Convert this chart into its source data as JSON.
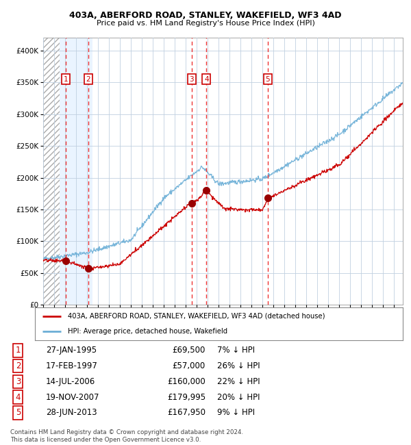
{
  "title1": "403A, ABERFORD ROAD, STANLEY, WAKEFIELD, WF3 4AD",
  "title2": "Price paid vs. HM Land Registry's House Price Index (HPI)",
  "legend_label1": "403A, ABERFORD ROAD, STANLEY, WAKEFIELD, WF3 4AD (detached house)",
  "legend_label2": "HPI: Average price, detached house, Wakefield",
  "table_entries": [
    {
      "num": 1,
      "date": "27-JAN-1995",
      "price": "£69,500",
      "pct": "7%",
      "arrow": "↓",
      "hpi": "HPI"
    },
    {
      "num": 2,
      "date": "17-FEB-1997",
      "price": "£57,000",
      "pct": "26%",
      "arrow": "↓",
      "hpi": "HPI"
    },
    {
      "num": 3,
      "date": "14-JUL-2006",
      "price": "£160,000",
      "pct": "22%",
      "arrow": "↓",
      "hpi": "HPI"
    },
    {
      "num": 4,
      "date": "19-NOV-2007",
      "price": "£179,995",
      "pct": "20%",
      "arrow": "↓",
      "hpi": "HPI"
    },
    {
      "num": 5,
      "date": "28-JUN-2013",
      "price": "£167,950",
      "pct": "9%",
      "arrow": "↓",
      "hpi": "HPI"
    }
  ],
  "sale_dates_decimal": [
    1995.07,
    1997.12,
    2006.54,
    2007.89,
    2013.49
  ],
  "sale_prices": [
    69500,
    57000,
    160000,
    179995,
    167950
  ],
  "footer": "Contains HM Land Registry data © Crown copyright and database right 2024.\nThis data is licensed under the Open Government Licence v3.0.",
  "hpi_color": "#6baed6",
  "price_color": "#cc0000",
  "marker_color": "#990000",
  "label_color": "#cc0000",
  "dashed_color": "#ee3333",
  "shade_color": "#ddeeff",
  "grid_color": "#c0d0e0",
  "background_color": "#ffffff",
  "ylim_max": 420000,
  "ytick_step": 50000,
  "xlim_start": 1993.0,
  "xlim_end": 2025.8,
  "hatch_end": 1994.5,
  "shade_start": 1994.5,
  "shade_end": 1997.5
}
